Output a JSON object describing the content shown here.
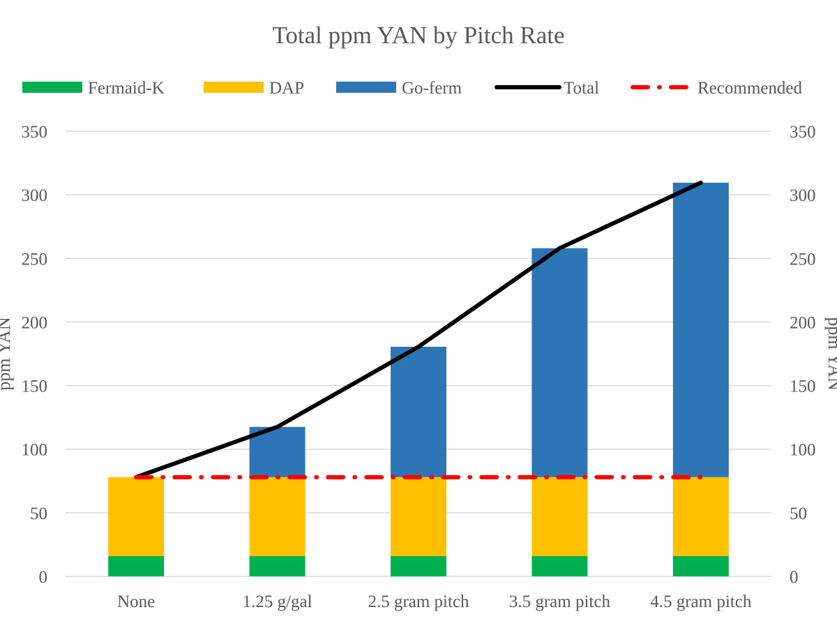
{
  "chart_data": {
    "type": "bar",
    "stacked": true,
    "title": "Total ppm YAN by Pitch Rate",
    "ylabel": "ppm YAN",
    "y2label": "ppm YAN",
    "ylim": [
      0,
      350
    ],
    "yticks": [
      0,
      50,
      100,
      150,
      200,
      250,
      300,
      350
    ],
    "grid": true,
    "legend_position": "top",
    "categories": [
      "None",
      "1.25 g/gal",
      "2.5 gram pitch",
      "3.5 gram pitch",
      "4.5 gram pitch"
    ],
    "series": [
      {
        "name": "Fermaid-K",
        "kind": "bar",
        "color": "#00B050",
        "values": [
          16,
          16,
          16,
          16,
          16
        ]
      },
      {
        "name": "DAP",
        "kind": "bar",
        "color": "#FFC000",
        "values": [
          62,
          62,
          62,
          62,
          62
        ]
      },
      {
        "name": "Go-ferm",
        "kind": "bar",
        "color": "#2E75B6",
        "values": [
          0,
          39.5,
          102.5,
          180,
          231.5
        ]
      },
      {
        "name": "Total",
        "kind": "line",
        "color": "#000000",
        "values": [
          78,
          117.5,
          180.5,
          258,
          309.5
        ]
      },
      {
        "name": "Recommended",
        "kind": "line-dashdot",
        "color": "#FF0000",
        "values": [
          78,
          78,
          78,
          78,
          78
        ]
      }
    ]
  }
}
